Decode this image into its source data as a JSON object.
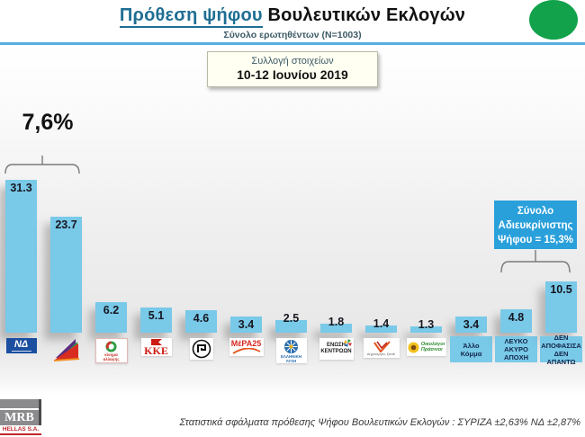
{
  "header": {
    "title_highlight": "Πρόθεση ψήφου",
    "title_rest": " Βουλευτικών Εκλογών",
    "subtitle": "Σύνολο ερωτηθέντων (N=1003)",
    "accent_color": "#1F6E93",
    "rule_color": "#56ADE0",
    "green_dot_color": "#12A24B"
  },
  "collection_box": {
    "line1": "Συλλογή στοιχείων",
    "line2": "10-12 Ιουνίου 2019"
  },
  "annotations": {
    "lead_gap": "7,6%",
    "undecided_box": {
      "line1": "Σύνολο",
      "line2": "Αδιευκρίνιστης",
      "line3": "Ψήφου = 15,3%",
      "color": "#2AA0DB"
    }
  },
  "chart_data": {
    "type": "bar",
    "title": "Πρόθεση ψήφου Βουλευτικών Εκλογών",
    "xlabel": "",
    "ylabel": "",
    "ylim": [
      0,
      35
    ],
    "grid": false,
    "legend": "none",
    "bar_color": "#79C9E8",
    "categories": [
      "Νέα Δημοκρατία",
      "ΣΥΡΙΖΑ",
      "Κίνημα Αλλαγής",
      "ΚΚΕ",
      "Χρυσή Αυγή",
      "ΜέΡΑ25",
      "Ελληνική Λύση",
      "Ένωση Κεντρώων",
      "Δημιουργία Ξανά",
      "Οικολόγοι Πράσινοι",
      "Άλλο Κόμμα",
      "ΛΕΥΚΟ ΑΚΥΡΟ ΑΠΟΧΗ",
      "ΔΕΝ ΑΠΟΦΑΣΙΣΑ ΔΕΝ ΑΠΑΝΤΩ"
    ],
    "values": [
      31.3,
      23.7,
      6.2,
      5.1,
      4.6,
      3.4,
      2.5,
      1.8,
      1.4,
      1.3,
      3.4,
      4.8,
      10.5
    ],
    "parties": [
      {
        "id": "nd",
        "name": "Νέα Δημοκρατία",
        "value": 31.3,
        "logo": "nd",
        "logo_text": "ΝΔ"
      },
      {
        "id": "syriza",
        "name": "ΣΥΡΙΖΑ",
        "value": 23.7,
        "logo": "syriza",
        "logo_text": "ΣΥΡΙΖΑ"
      },
      {
        "id": "kinal",
        "name": "Κίνημα Αλλαγής",
        "value": 6.2,
        "logo": "kinal",
        "logo_text": "κίνημα αλλαγής"
      },
      {
        "id": "kke",
        "name": "ΚΚΕ",
        "value": 5.1,
        "logo": "kke",
        "logo_text": "ΚΚΕ"
      },
      {
        "id": "xrysi-avgi",
        "name": "Χρυσή Αυγή",
        "value": 4.6,
        "logo": "xa",
        "logo_text": ""
      },
      {
        "id": "mera25",
        "name": "ΜέΡΑ25",
        "value": 3.4,
        "logo": "mera25",
        "logo_text": "ΜέΡΑ25"
      },
      {
        "id": "elliniki-lysi",
        "name": "Ελληνική Λύση",
        "value": 2.5,
        "logo": "ellysi",
        "logo_text": "ΕΛΛΗΝΙΚΗ ΛΥΣΗ"
      },
      {
        "id": "enosi-kentroon",
        "name": "Ένωση Κεντρώων",
        "value": 1.8,
        "logo": "enosi",
        "logo_text": "ΕΝΩΣΗ ΚΕΝΤΡΩΩΝ"
      },
      {
        "id": "dimiourgia-xana",
        "name": "Δημιουργία Ξανά",
        "value": 1.4,
        "logo": "dimiourgia",
        "logo_text": "Δημιουργία, ξανά!"
      },
      {
        "id": "oikologoi-prasinoi",
        "name": "Οικολόγοι Πράσινοι",
        "value": 1.3,
        "logo": "oikologoi",
        "logo_text": "Οικολόγοι Πράσινοι"
      },
      {
        "id": "allo-komma",
        "name": "Άλλο Κόμμα",
        "value": 3.4,
        "label_box": [
          "Άλλο",
          "Κόμμα"
        ]
      },
      {
        "id": "leyko-akyro-apoxi",
        "name": "ΛΕΥΚΟ ΑΚΥΡΟ ΑΠΟΧΗ",
        "value": 4.8,
        "label_box": [
          "ΛΕΥΚΟ",
          "ΑΚΥΡΟ",
          "ΑΠΟΧΗ"
        ]
      },
      {
        "id": "den-apofasisa-den-apanto",
        "name": "ΔΕΝ ΑΠΟΦΑΣΙΣΑ ΔΕΝ ΑΠΑΝΤΩ",
        "value": 10.5,
        "label_box": [
          "ΔΕΝ",
          "ΑΠΟΦΑΣΙΣΑ",
          "ΔΕΝ ΑΠΑΝΤΩ"
        ]
      }
    ]
  },
  "footer": {
    "logo_line1": "MRB",
    "logo_line2": "HELLAS S.A.",
    "note": "Στατιστικά σφάλματα πρόθεσης Ψήφου Βουλευτικών Εκλογών : ΣΥΡΙΖΑ ±2,63% ΝΔ ±2,87%"
  }
}
